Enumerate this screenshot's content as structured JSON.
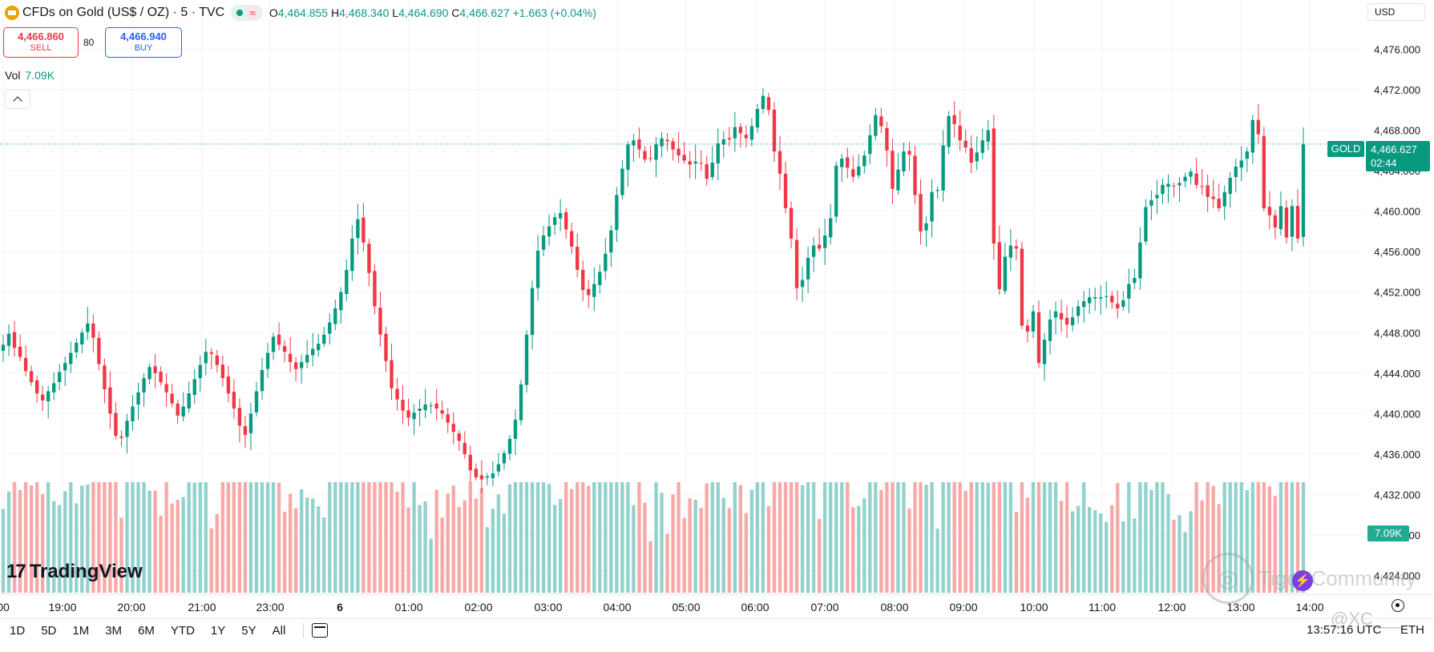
{
  "header": {
    "symbol_title": "CFDs on Gold (US$ / OZ) · 5 · TVC",
    "status_glyph": "≈",
    "ohlc": {
      "o_label": "O",
      "o": "4,464.855",
      "h_label": "H",
      "h": "4,468.340",
      "l_label": "L",
      "l": "4,464.690",
      "c_label": "C",
      "c": "4,466.627",
      "change": "+1.663 (+0.04%)"
    }
  },
  "trade": {
    "sell_price": "4,466.860",
    "sell_label": "SELL",
    "spread": "80",
    "buy_price": "4,466.940",
    "buy_label": "BUY"
  },
  "volume_legend": {
    "label": "Vol",
    "value": "7.09K"
  },
  "currency": "USD",
  "price_label": {
    "symbol": "GOLD",
    "price": "4,466.627",
    "countdown": "02:44"
  },
  "volume_label": "7.09K",
  "branding": {
    "tv_logo_text": "TradingView",
    "watermark_text": "Tiger Community",
    "handle": "@XC___"
  },
  "bottom_bar": {
    "timeframes": [
      "1D",
      "5D",
      "1M",
      "3M",
      "6M",
      "YTD",
      "1Y",
      "5Y",
      "All"
    ],
    "clock": "13:57:16 UTC",
    "session": "ETH"
  },
  "colors": {
    "up": "#089981",
    "down": "#f23645",
    "vol_up": "#92d2cc",
    "vol_down": "#f7a9a7",
    "grid": "#f0f3fa",
    "text": "#131722"
  },
  "chart_data": {
    "type": "candlestick",
    "ylabel": "USD",
    "y_ticks": [
      "4,476.000",
      "4,472.000",
      "4,468.000",
      "4,464.000",
      "4,460.000",
      "4,456.000",
      "4,452.000",
      "4,448.000",
      "4,444.000",
      "4,440.000",
      "4,436.000",
      "4,432.000",
      "4,428.000",
      "4,424.000"
    ],
    "y_tick_values": [
      4476,
      4472,
      4468,
      4464,
      4460,
      4456,
      4452,
      4448,
      4444,
      4440,
      4436,
      4432,
      4428,
      4424
    ],
    "ylim": [
      4422.3,
      4477.7
    ],
    "x_ticks": [
      "00",
      "19:00",
      "20:00",
      "21:00",
      "23:00",
      "6",
      "01:00",
      "02:00",
      "03:00",
      "04:00",
      "05:00",
      "06:00",
      "07:00",
      "08:00",
      "09:00",
      "10:00",
      "11:00",
      "12:00",
      "13:00",
      "14:00"
    ],
    "last_price": 4466.627,
    "series": {
      "close": [
        4446.8,
        4447.9,
        4446.5,
        4445.6,
        4444.2,
        4443.1,
        4442.0,
        4441.3,
        4442.2,
        4443.0,
        4444.1,
        4445.0,
        4446.0,
        4447.0,
        4448.0,
        4448.9,
        4447.5,
        4444.9,
        4442.4,
        4440.0,
        4437.8,
        4437.6,
        4439.3,
        4440.7,
        4442.1,
        4443.5,
        4444.6,
        4444.0,
        4443.1,
        4442.1,
        4441.0,
        4439.8,
        4440.7,
        4442.0,
        4443.4,
        4444.8,
        4446.1,
        4445.9,
        4444.8,
        4443.5,
        4442.0,
        4440.5,
        4438.8,
        4437.9,
        4440.0,
        4442.2,
        4444.3,
        4446.0,
        4447.6,
        4446.8,
        4446.1,
        4445.1,
        4444.4,
        4445.1,
        4445.8,
        4446.4,
        4446.9,
        4447.8,
        4449.0,
        4450.4,
        4452.0,
        4454.2,
        4457.3,
        4459.2,
        4456.9,
        4453.9,
        4450.6,
        4447.8,
        4445.2,
        4442.5,
        4441.4,
        4440.3,
        4439.6,
        4440.1,
        4440.5,
        4440.9,
        4440.8,
        4440.5,
        4440.0,
        4439.1,
        4438.2,
        4437.3,
        4436.0,
        4434.4,
        4433.7,
        4433.5,
        4433.8,
        4434.1,
        4435.0,
        4436.1,
        4437.5,
        4439.4,
        4442.9,
        4447.8,
        4452.4,
        4456.1,
        4457.6,
        4458.5,
        4459.4,
        4459.8,
        4458.2,
        4456.5,
        4454.2,
        4452.2,
        4451.7,
        4452.8,
        4454.0,
        4455.8,
        4458.1,
        4461.6,
        4464.2,
        4466.6,
        4467.0,
        4466.1,
        4465.1,
        4465.2,
        4466.6,
        4467.2,
        4466.9,
        4466.1,
        4465.5,
        4465.0,
        4464.6,
        4464.9,
        4464.7,
        4463.2,
        4464.8,
        4466.7,
        4467.1,
        4467.1,
        4468.3,
        4467.7,
        4467.2,
        4468.4,
        4470.1,
        4471.4,
        4470.0,
        4465.9,
        4463.7,
        4460.3,
        4457.3,
        4452.4,
        4453.2,
        4455.4,
        4456.6,
        4456.3,
        4457.6,
        4459.3,
        4464.5,
        4465.2,
        4464.3,
        4463.4,
        4464.4,
        4465.5,
        4467.5,
        4469.5,
        4468.4,
        4466.0,
        4462.2,
        4464.1,
        4465.9,
        4465.6,
        4461.6,
        4458.0,
        4458.8,
        4461.9,
        4462.1,
        4466.5,
        4469.4,
        4468.6,
        4467.0,
        4466.3,
        4464.8,
        4465.8,
        4467.0,
        4468.0,
        4456.8,
        4452.3,
        4455.5,
        4456.6,
        4456.3,
        4448.7,
        4448.1,
        4450.1,
        4445.0,
        4447.3,
        4449.3,
        4450.1,
        4449.3,
        4448.8,
        4449.5,
        4450.6,
        4451.1,
        4451.5,
        4451.5,
        4451.5,
        4451.6,
        4451.0,
        4450.4,
        4451.2,
        4452.8,
        4453.4,
        4456.9,
        4460.4,
        4461.1,
        4461.6,
        4462.6,
        4462.7,
        4462.5,
        4462.8,
        4463.4,
        4463.9,
        4462.6,
        4462.4,
        4461.4,
        4461.2,
        4460.3,
        4461.9,
        4463.3,
        4464.4,
        4465.0,
        4465.9,
        4469.0,
        4467.6,
        4460.3,
        4459.6,
        4458.4,
        4460.5,
        4457.4,
        4460.5,
        4457.3,
        4466.6
      ]
    },
    "volume_scale_note": "relative"
  }
}
